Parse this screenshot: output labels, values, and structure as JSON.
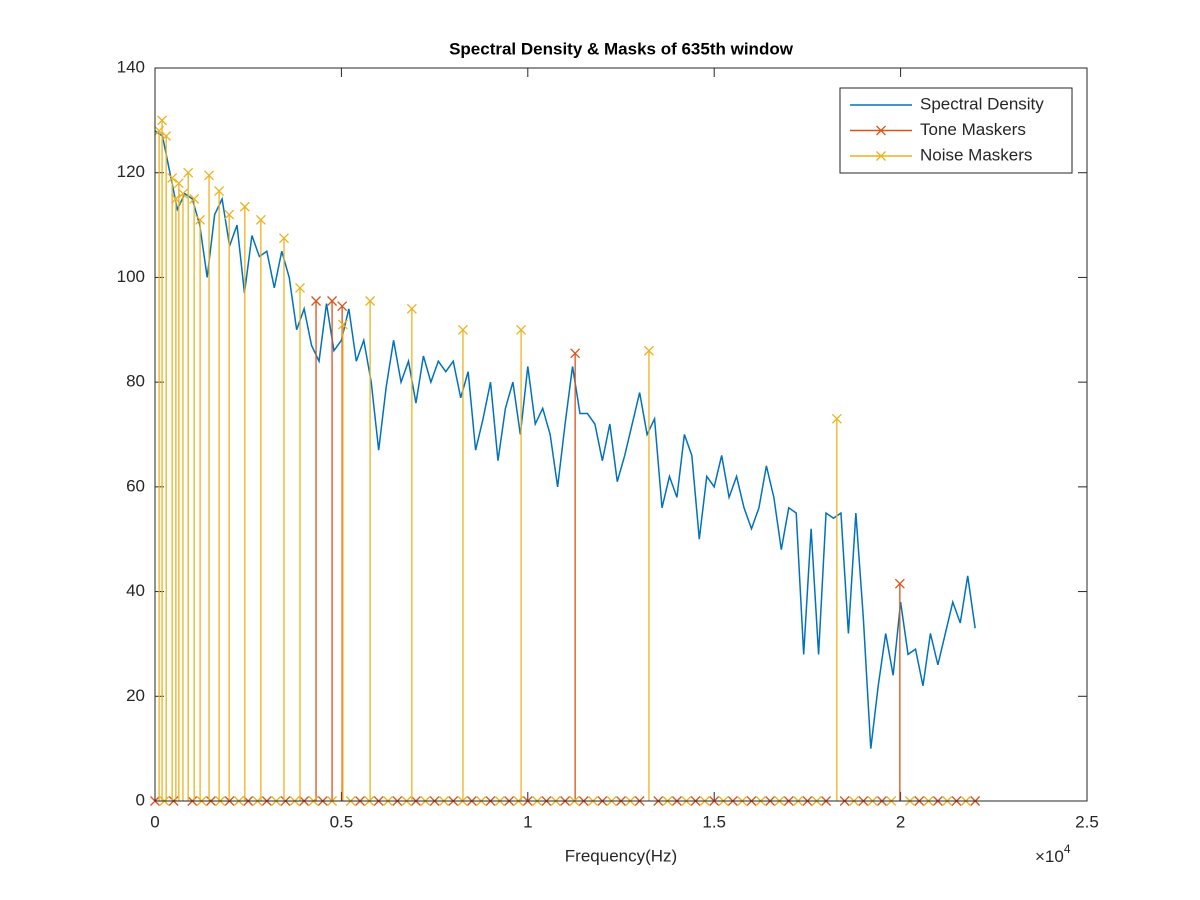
{
  "chart_data": {
    "type": "line_stem",
    "title": "Spectral Density & Masks of 635th window",
    "x_label": "Frequency(Hz)",
    "x_multiplier": {
      "base": "×10",
      "power": "4"
    },
    "xlim": [
      0,
      25000
    ],
    "xticks": [
      0,
      {
        "value": 5000,
        "label": "0.5"
      },
      {
        "value": 10000,
        "label": "1"
      },
      {
        "value": 15000,
        "label": "1.5"
      },
      {
        "value": 20000,
        "label": "2"
      },
      {
        "value": 25000,
        "label": "2.5"
      }
    ],
    "ylim": [
      0,
      140
    ],
    "yticks": [
      0,
      20,
      40,
      60,
      80,
      100,
      120,
      140
    ],
    "legend": "top-right",
    "series": [
      {
        "name": "Spectral Density",
        "kind": "line",
        "color": "#0072BD",
        "x": [
          0,
          200,
          400,
          600,
          800,
          1000,
          1200,
          1400,
          1600,
          1800,
          2000,
          2200,
          2400,
          2600,
          2800,
          3000,
          3200,
          3400,
          3600,
          3800,
          4000,
          4200,
          4400,
          4600,
          4800,
          5000,
          5200,
          5400,
          5600,
          5800,
          6000,
          6200,
          6400,
          6600,
          6800,
          7000,
          7200,
          7400,
          7600,
          7800,
          8000,
          8200,
          8400,
          8600,
          8800,
          9000,
          9200,
          9400,
          9600,
          9800,
          10000,
          10200,
          10400,
          10600,
          10800,
          11000,
          11200,
          11400,
          11600,
          11800,
          12000,
          12200,
          12400,
          12600,
          12800,
          13000,
          13200,
          13400,
          13600,
          13800,
          14000,
          14200,
          14400,
          14600,
          14800,
          15000,
          15200,
          15400,
          15600,
          15800,
          16000,
          16200,
          16400,
          16600,
          16800,
          17000,
          17200,
          17400,
          17600,
          17800,
          18000,
          18200,
          18400,
          18600,
          18800,
          19000,
          19200,
          19400,
          19600,
          19800,
          20000,
          20200,
          20400,
          20600,
          20800,
          21000,
          21200,
          21400,
          21600,
          21800,
          22000
        ],
        "values": [
          128,
          127,
          120,
          113,
          116,
          115,
          110,
          100,
          112,
          115,
          106,
          110,
          97,
          108,
          104,
          105,
          98,
          105,
          100,
          90,
          94,
          87,
          84,
          95,
          86,
          88,
          94,
          84,
          88,
          80,
          67,
          79,
          88,
          80,
          84,
          76,
          85,
          80,
          84,
          82,
          84,
          77,
          82,
          67,
          73,
          80,
          65,
          75,
          80,
          70,
          83,
          72,
          75,
          70,
          60,
          72,
          83,
          74,
          74,
          72,
          65,
          72,
          61,
          66,
          72,
          78,
          70,
          73,
          56,
          62,
          58,
          70,
          66,
          50,
          62,
          60,
          66,
          58,
          62,
          56,
          52,
          56,
          64,
          58,
          48,
          56,
          55,
          28,
          52,
          28,
          55,
          54,
          55,
          32,
          55,
          35,
          10,
          22,
          32,
          24,
          38,
          28,
          29,
          22,
          32,
          26,
          32,
          38,
          34,
          43,
          33
        ]
      },
      {
        "name": "Tone Maskers",
        "kind": "stem",
        "color": "#D95319",
        "x": [
          4320,
          4750,
          5020,
          11270,
          19980,
          0,
          500,
          1000,
          1500,
          2000,
          2500,
          3000,
          3500,
          4000,
          4500,
          5500,
          6000,
          6500,
          7000,
          7500,
          8000,
          8500,
          9000,
          9500,
          10000,
          10500,
          11000,
          11500,
          12000,
          12500,
          13000,
          13500,
          14000,
          14500,
          15000,
          15500,
          16000,
          16500,
          17000,
          17500,
          18000,
          18500,
          19000,
          19500,
          20500,
          21000,
          21500,
          22000
        ],
        "values": [
          95.5,
          95.5,
          94.5,
          85.5,
          41.5,
          0,
          0,
          0,
          0,
          0,
          0,
          0,
          0,
          0,
          0,
          0,
          0,
          0,
          0,
          0,
          0,
          0,
          0,
          0,
          0,
          0,
          0,
          0,
          0,
          0,
          0,
          0,
          0,
          0,
          0,
          0,
          0,
          0,
          0,
          0,
          0,
          0,
          0,
          0,
          0,
          0,
          0,
          0
        ]
      },
      {
        "name": "Noise Maskers",
        "kind": "stem",
        "color": "#EDB120",
        "x": [
          110,
          190,
          300,
          460,
          560,
          640,
          750,
          890,
          1050,
          1210,
          1450,
          1720,
          1990,
          2410,
          2840,
          3460,
          3890,
          5040,
          5770,
          6890,
          8260,
          9820,
          13250,
          18290,
          250,
          1250,
          1750,
          2250,
          2750,
          3250,
          3750,
          4250,
          4750,
          5250,
          5750,
          6250,
          6750,
          7250,
          7750,
          8250,
          8750,
          9250,
          9750,
          10250,
          10750,
          11250,
          11750,
          12250,
          12750,
          13750,
          14250,
          14750,
          15250,
          15750,
          16250,
          16750,
          17250,
          17750,
          18750,
          19250,
          19750,
          20250,
          20750,
          21250,
          21750
        ],
        "values": [
          128,
          130,
          127,
          119,
          115,
          118,
          116,
          120,
          115,
          111,
          119.5,
          116.5,
          112,
          113.5,
          111,
          107.5,
          98,
          91,
          95.5,
          94,
          90,
          90,
          86,
          73,
          0,
          0,
          0,
          0,
          0,
          0,
          0,
          0,
          0,
          0,
          0,
          0,
          0,
          0,
          0,
          0,
          0,
          0,
          0,
          0,
          0,
          0,
          0,
          0,
          0,
          0,
          0,
          0,
          0,
          0,
          0,
          0,
          0,
          0,
          0,
          0,
          0,
          0,
          0,
          0,
          0
        ]
      }
    ]
  }
}
